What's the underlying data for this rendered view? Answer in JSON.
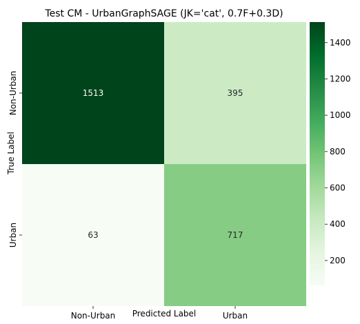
{
  "chart_data": {
    "type": "heatmap",
    "title": "Test CM - UrbanGraphSAGE (JK='cat', 0.7F+0.3D)",
    "xlabel": "Predicted Label",
    "ylabel": "True Label",
    "x_categories": [
      "Non-Urban",
      "Urban"
    ],
    "y_categories": [
      "Non-Urban",
      "Urban"
    ],
    "values": [
      [
        1513,
        395
      ],
      [
        63,
        717
      ]
    ],
    "colormap": "Greens",
    "colorbar": {
      "range": [
        63,
        1513
      ],
      "ticks": [
        200,
        400,
        600,
        800,
        1000,
        1200,
        1400
      ],
      "tick_labels": [
        "200",
        "400",
        "600",
        "800",
        "1000",
        "1200",
        "1400"
      ]
    },
    "annotation_colors": {
      "on_dark": "#ffffff",
      "on_light": "#262626"
    }
  }
}
